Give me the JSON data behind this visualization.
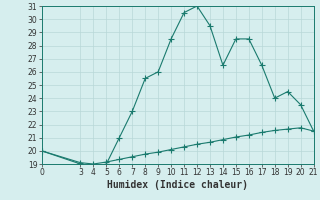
{
  "title": "",
  "xlabel": "Humidex (Indice chaleur)",
  "ylabel": "",
  "bg_color": "#d6eeee",
  "line_color": "#1a7a6e",
  "grid_color": "#b8d8d8",
  "upper_x": [
    0,
    3,
    4,
    5,
    6,
    7,
    8,
    9,
    10,
    11,
    12,
    13,
    14,
    15,
    16,
    17,
    18,
    19,
    20,
    21
  ],
  "upper_y": [
    20,
    19,
    18.7,
    19,
    21,
    23,
    25.5,
    26,
    28.5,
    30.5,
    31,
    29.5,
    26.5,
    28.5,
    28.5,
    26.5,
    24,
    24.5,
    23.5,
    21.5
  ],
  "lower_x": [
    0,
    3,
    4,
    5,
    6,
    7,
    8,
    9,
    10,
    11,
    12,
    13,
    14,
    15,
    16,
    17,
    18,
    19,
    20,
    21
  ],
  "lower_y": [
    20.0,
    19.1,
    19.0,
    19.15,
    19.35,
    19.55,
    19.75,
    19.9,
    20.1,
    20.3,
    20.5,
    20.65,
    20.85,
    21.05,
    21.2,
    21.4,
    21.55,
    21.65,
    21.75,
    21.5
  ],
  "xlim": [
    0,
    21
  ],
  "ylim": [
    19,
    31
  ],
  "yticks": [
    19,
    20,
    21,
    22,
    23,
    24,
    25,
    26,
    27,
    28,
    29,
    30,
    31
  ],
  "xticks": [
    0,
    3,
    4,
    5,
    6,
    7,
    8,
    9,
    10,
    11,
    12,
    13,
    14,
    15,
    16,
    17,
    18,
    19,
    20,
    21
  ],
  "tick_fontsize": 5.5,
  "xlabel_fontsize": 7.0,
  "marker_size": 2.0,
  "line_width": 0.8
}
